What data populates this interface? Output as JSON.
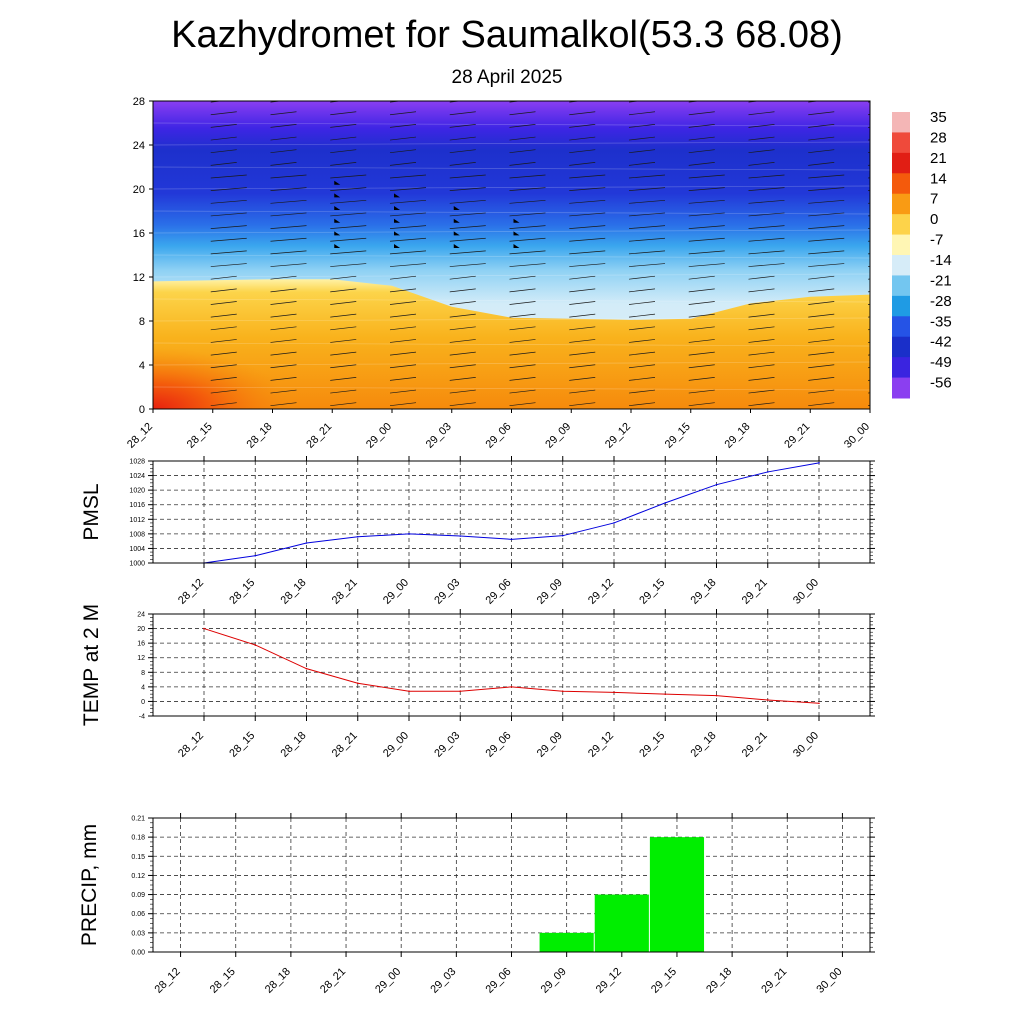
{
  "title": "Kazhydromet for Saumalkol(53.3 68.08)",
  "subtitle": "28 April 2025",
  "colorbar": {
    "labels": [
      "35",
      "28",
      "21",
      "14",
      "7",
      "0",
      "-7",
      "-14",
      "-21",
      "-28",
      "-35",
      "-42",
      "-49",
      "-56"
    ],
    "colors": [
      "#f4b6b6",
      "#ef4a3b",
      "#e11e14",
      "#f45a0c",
      "#f99b14",
      "#fdd34a",
      "#fff6b4",
      "#d6ecf8",
      "#73c6f0",
      "#1f9be4",
      "#2553e6",
      "#1a2fc9",
      "#3a24e0",
      "#8b3ff0"
    ]
  },
  "chart_data": [
    {
      "type": "heatmap",
      "name": "cross-section",
      "categories": [
        "28_12",
        "28_15",
        "28_18",
        "28_21",
        "29_00",
        "29_03",
        "29_06",
        "29_09",
        "29_12",
        "29_15",
        "29_18",
        "29_21",
        "30_00"
      ],
      "yticks": [
        "0",
        "4",
        "8",
        "12",
        "16",
        "20",
        "24",
        "28"
      ],
      "ylim": [
        0,
        28
      ],
      "freezing_level": [
        11.6,
        11.7,
        11.8,
        11.8,
        11.2,
        9.3,
        8.3,
        8.2,
        8.1,
        8.2,
        9.6,
        10.2,
        10.4
      ],
      "wind_barbs": true
    },
    {
      "type": "line",
      "ylabel": "PMSL",
      "categories": [
        "28_12",
        "28_15",
        "28_18",
        "28_21",
        "29_00",
        "29_03",
        "29_06",
        "29_09",
        "29_12",
        "29_15",
        "29_18",
        "29_21",
        "30_00"
      ],
      "values": [
        1000,
        1002,
        1005.5,
        1007.2,
        1008,
        1007.4,
        1006.5,
        1007.5,
        1011,
        1016.5,
        1021.5,
        1025,
        1027.5
      ],
      "ylim": [
        1000,
        1028
      ],
      "yticks": [
        "1000",
        "1004",
        "1008",
        "1012",
        "1016",
        "1020",
        "1024",
        "1028"
      ],
      "color": "#0000dd",
      "grid": true
    },
    {
      "type": "line",
      "ylabel": "TEMP at 2 M",
      "categories": [
        "28_12",
        "28_15",
        "28_18",
        "28_21",
        "29_00",
        "29_03",
        "29_06",
        "29_09",
        "29_12",
        "29_15",
        "29_18",
        "29_21",
        "30_00"
      ],
      "values": [
        20,
        15.5,
        9,
        5,
        2.8,
        2.8,
        4,
        2.8,
        2.5,
        2,
        1.6,
        0.4,
        -0.5
      ],
      "ylim": [
        -4,
        24
      ],
      "yticks": [
        "-4",
        "0",
        "4",
        "8",
        "12",
        "16",
        "20",
        "24"
      ],
      "color": "#dd0000",
      "grid": true
    },
    {
      "type": "bar",
      "ylabel": "PRECIP, mm",
      "categories": [
        "28_12",
        "28_15",
        "28_18",
        "28_21",
        "29_00",
        "29_03",
        "29_06",
        "29_09",
        "29_12",
        "29_15",
        "29_18",
        "29_21",
        "30_00"
      ],
      "values": [
        0,
        0,
        0,
        0,
        0,
        0,
        0,
        0.03,
        0.09,
        0.18,
        0,
        0,
        0
      ],
      "ylim": [
        0,
        0.21
      ],
      "yticks": [
        "0.00",
        "0.03",
        "0.06",
        "0.09",
        "0.12",
        "0.15",
        "0.18",
        "0.21"
      ],
      "color": "#00ee00",
      "grid": true
    }
  ]
}
